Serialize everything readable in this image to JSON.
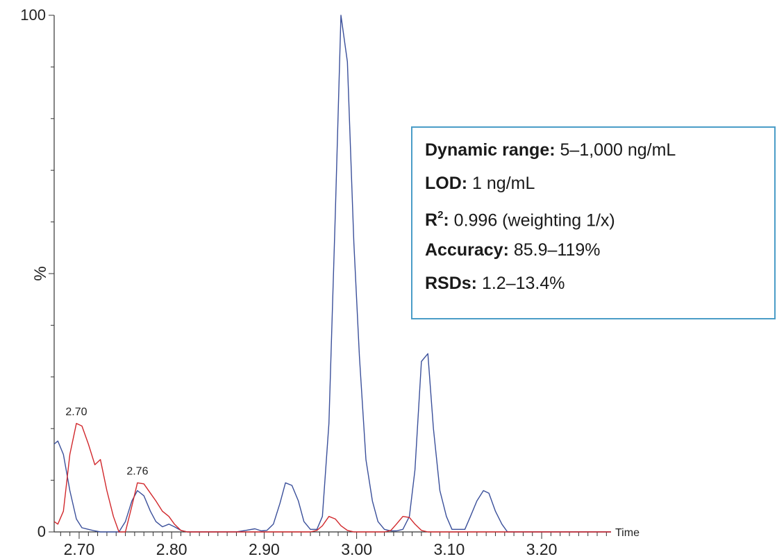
{
  "chart_data": {
    "type": "line",
    "xlabel": "Time",
    "ylabel": "%",
    "xlim": [
      2.673,
      3.275
    ],
    "ylim": [
      0,
      100
    ],
    "x_ticks": [
      "2.70",
      "2.80",
      "2.90",
      "3.00",
      "3.10",
      "3.20"
    ],
    "x_tick_values": [
      2.7,
      2.8,
      2.9,
      3.0,
      3.1,
      3.2
    ],
    "y_ticks": [
      "0",
      "%",
      "100"
    ],
    "grid": false,
    "series": [
      {
        "color": "#3a4f9a",
        "points": [
          [
            2.673,
            17
          ],
          [
            2.677,
            17.6
          ],
          [
            2.683,
            15
          ],
          [
            2.69,
            8
          ],
          [
            2.697,
            2.5
          ],
          [
            2.703,
            0.8
          ],
          [
            2.71,
            0.5
          ],
          [
            2.717,
            0.2
          ],
          [
            2.723,
            0
          ],
          [
            2.73,
            0
          ],
          [
            2.737,
            0
          ],
          [
            2.743,
            0
          ],
          [
            2.75,
            2
          ],
          [
            2.757,
            6
          ],
          [
            2.763,
            8
          ],
          [
            2.77,
            7
          ],
          [
            2.777,
            4
          ],
          [
            2.783,
            2
          ],
          [
            2.79,
            1
          ],
          [
            2.797,
            1.5
          ],
          [
            2.803,
            1
          ],
          [
            2.81,
            0.3
          ],
          [
            2.817,
            0
          ],
          [
            2.83,
            0
          ],
          [
            2.85,
            0
          ],
          [
            2.87,
            0
          ],
          [
            2.88,
            0.3
          ],
          [
            2.89,
            0.6
          ],
          [
            2.897,
            0.2
          ],
          [
            2.903,
            0.3
          ],
          [
            2.91,
            1.5
          ],
          [
            2.917,
            5.5
          ],
          [
            2.923,
            9.5
          ],
          [
            2.93,
            9
          ],
          [
            2.937,
            6
          ],
          [
            2.943,
            2
          ],
          [
            2.95,
            0.5
          ],
          [
            2.957,
            0.5
          ],
          [
            2.963,
            3
          ],
          [
            2.97,
            21
          ],
          [
            2.977,
            62
          ],
          [
            2.983,
            100
          ],
          [
            2.99,
            91
          ],
          [
            2.997,
            56
          ],
          [
            3.003,
            34
          ],
          [
            3.01,
            14
          ],
          [
            3.017,
            6
          ],
          [
            3.023,
            2
          ],
          [
            3.03,
            0.5
          ],
          [
            3.037,
            0.2
          ],
          [
            3.043,
            0.2
          ],
          [
            3.05,
            0.5
          ],
          [
            3.057,
            3
          ],
          [
            3.063,
            12
          ],
          [
            3.07,
            33
          ],
          [
            3.077,
            34.5
          ],
          [
            3.083,
            20
          ],
          [
            3.09,
            8
          ],
          [
            3.097,
            3
          ],
          [
            3.103,
            0.5
          ],
          [
            3.11,
            0.5
          ],
          [
            3.117,
            0.5
          ],
          [
            3.123,
            3
          ],
          [
            3.13,
            6
          ],
          [
            3.137,
            8
          ],
          [
            3.143,
            7.5
          ],
          [
            3.15,
            4
          ],
          [
            3.157,
            1.5
          ],
          [
            3.163,
            0
          ],
          [
            3.17,
            0
          ],
          [
            3.2,
            0
          ],
          [
            3.25,
            0
          ],
          [
            3.275,
            0
          ]
        ]
      },
      {
        "color": "#d1272b",
        "points": [
          [
            2.673,
            2
          ],
          [
            2.677,
            1.5
          ],
          [
            2.683,
            4
          ],
          [
            2.69,
            15
          ],
          [
            2.697,
            21
          ],
          [
            2.703,
            20.5
          ],
          [
            2.71,
            17
          ],
          [
            2.717,
            13
          ],
          [
            2.723,
            14
          ],
          [
            2.73,
            8
          ],
          [
            2.737,
            3
          ],
          [
            2.743,
            0
          ],
          [
            2.75,
            0
          ],
          [
            2.757,
            5
          ],
          [
            2.763,
            9.5
          ],
          [
            2.77,
            9.3
          ],
          [
            2.777,
            7.5
          ],
          [
            2.783,
            6
          ],
          [
            2.79,
            4
          ],
          [
            2.797,
            3
          ],
          [
            2.803,
            1.5
          ],
          [
            2.81,
            0.3
          ],
          [
            2.817,
            0
          ],
          [
            2.85,
            0
          ],
          [
            2.9,
            0
          ],
          [
            2.95,
            0
          ],
          [
            2.957,
            0.3
          ],
          [
            2.963,
            1.2
          ],
          [
            2.97,
            3
          ],
          [
            2.977,
            2.5
          ],
          [
            2.983,
            1.2
          ],
          [
            2.99,
            0.3
          ],
          [
            2.997,
            0
          ],
          [
            3.03,
            0
          ],
          [
            3.037,
            0.3
          ],
          [
            3.043,
            1.5
          ],
          [
            3.05,
            3
          ],
          [
            3.057,
            2.8
          ],
          [
            3.063,
            1.5
          ],
          [
            3.07,
            0.3
          ],
          [
            3.077,
            0
          ],
          [
            3.1,
            0
          ],
          [
            3.2,
            0
          ],
          [
            3.275,
            0
          ]
        ]
      }
    ],
    "annotations": [
      {
        "text": "2.70",
        "x": 2.697,
        "y": 21
      },
      {
        "text": "2.76",
        "x": 2.763,
        "y": 9.5
      }
    ]
  },
  "info_box": {
    "lines": [
      {
        "key": "Dynamic range:",
        "value": " 5–1,000 ng/mL"
      },
      {
        "key": "LOD:",
        "value": " 1 ng/mL"
      },
      {
        "key": "R",
        "sup": "2",
        "key_suffix": ":",
        "value": " 0.996 (weighting 1/x)"
      },
      {
        "key": "Accuracy:",
        "value": " 85.9–119%"
      },
      {
        "key": "RSDs:",
        "value": " 1.2–13.4%"
      }
    ]
  }
}
